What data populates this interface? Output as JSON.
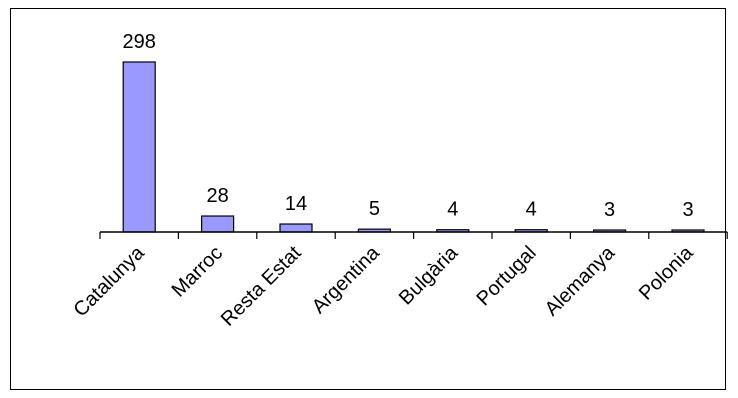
{
  "chart_data": {
    "type": "bar",
    "categories": [
      "Catalunya",
      "Marroc",
      "Resta Estat",
      "Argentina",
      "Bulgària",
      "Portugal",
      "Alemanya",
      "Polonia"
    ],
    "values": [
      298,
      28,
      14,
      5,
      4,
      4,
      3,
      3
    ],
    "data_labels": [
      "298",
      "28",
      "14",
      "5",
      "4",
      "4",
      "3",
      "3"
    ],
    "title": "",
    "xlabel": "",
    "ylabel": "",
    "ylim": [
      0,
      298
    ],
    "grid": false,
    "legend": "none",
    "bar_color": "#9999ff",
    "bar_border_color": "#000000"
  }
}
